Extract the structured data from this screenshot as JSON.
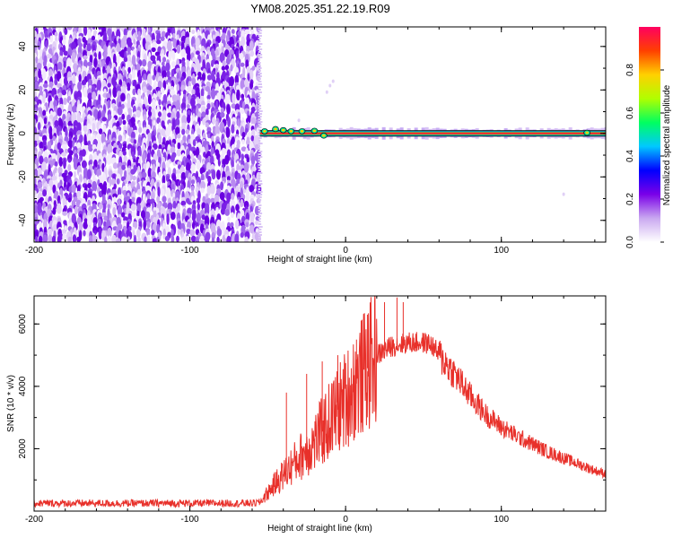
{
  "title": "YM08.2025.351.22.19.R09",
  "chart_data": [
    {
      "type": "heatmap",
      "xlabel": "Height of straight line (km)",
      "ylabel": "Frequency (Hz)",
      "xlim": [
        -200,
        167
      ],
      "ylim": [
        -50,
        49
      ],
      "x_ticks": [
        -200,
        -100,
        0,
        100
      ],
      "y_ticks": [
        -40,
        -20,
        0,
        20,
        40
      ],
      "noise_region_x": [
        -200,
        -55
      ],
      "signal_line": {
        "frequency": 0,
        "x_start": -55,
        "x_end": 167
      },
      "colorbar": {
        "label": "Normalized spectral amplitude",
        "range": [
          0,
          1
        ],
        "ticks": [
          "0.0",
          "0.2",
          "0.4",
          "0.6",
          "0.8"
        ],
        "colors": [
          "#ffffff",
          "#c9a8f0",
          "#7a00e8",
          "#0000ff",
          "#00c8ff",
          "#00ff60",
          "#b0ff00",
          "#ffd000",
          "#ff4000",
          "#ff0060"
        ]
      }
    },
    {
      "type": "line",
      "xlabel": "Height of straight line (km)",
      "ylabel": "SNR (10 * v/v)",
      "xlim": [
        -200,
        167
      ],
      "ylim": [
        0,
        6900
      ],
      "x_ticks": [
        -200,
        -100,
        0,
        100
      ],
      "y_ticks": [
        2000,
        4000,
        6000
      ],
      "color": "#e8302a",
      "envelope": {
        "x": [
          -200,
          -60,
          -55,
          -45,
          -30,
          -20,
          -10,
          0,
          10,
          20,
          30,
          40,
          50,
          55,
          60,
          70,
          80,
          90,
          100,
          110,
          120,
          130,
          140,
          150,
          160,
          167
        ],
        "y": [
          250,
          250,
          280,
          900,
          1700,
          2200,
          2900,
          3600,
          4300,
          5000,
          5300,
          5400,
          5400,
          5350,
          5000,
          4400,
          3700,
          3100,
          2700,
          2400,
          2150,
          1900,
          1700,
          1500,
          1300,
          1200
        ]
      },
      "spikes": [
        {
          "x": 25,
          "y": 6700
        },
        {
          "x": 33,
          "y": 6850
        },
        {
          "x": 37,
          "y": 6700
        },
        {
          "x": 14,
          "y": 6300
        },
        {
          "x": -5,
          "y": 5000
        },
        {
          "x": -25,
          "y": 4400
        },
        {
          "x": -38,
          "y": 3800
        },
        {
          "x": 7,
          "y": 5500
        },
        {
          "x": -15,
          "y": 4800
        }
      ]
    }
  ]
}
